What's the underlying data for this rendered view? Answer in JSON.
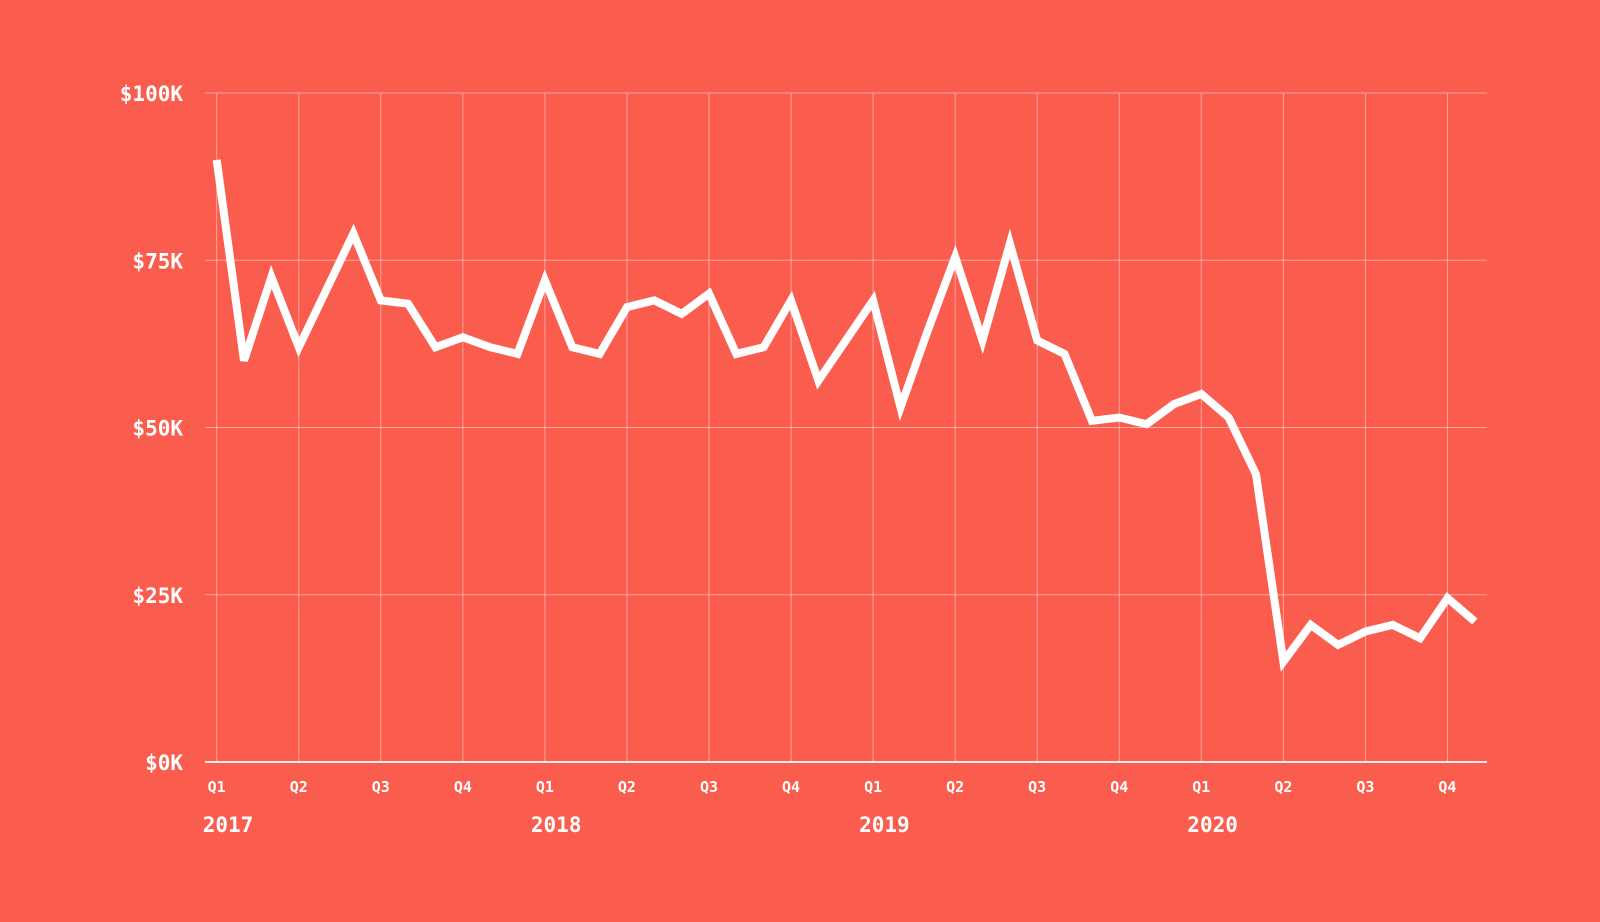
{
  "chart_data": {
    "type": "line",
    "title": "",
    "unit": "USD thousands per month",
    "legend": false,
    "grid": true,
    "x": [
      "2017-01",
      "2017-02",
      "2017-03",
      "2017-04",
      "2017-05",
      "2017-06",
      "2017-07",
      "2017-08",
      "2017-09",
      "2017-10",
      "2017-11",
      "2017-12",
      "2018-01",
      "2018-02",
      "2018-03",
      "2018-04",
      "2018-05",
      "2018-06",
      "2018-07",
      "2018-08",
      "2018-09",
      "2018-10",
      "2018-11",
      "2018-12",
      "2019-01",
      "2019-02",
      "2019-03",
      "2019-04",
      "2019-05",
      "2019-06",
      "2019-07",
      "2019-08",
      "2019-09",
      "2019-10",
      "2019-11",
      "2019-12",
      "2020-01",
      "2020-02",
      "2020-03",
      "2020-04",
      "2020-05",
      "2020-06",
      "2020-07",
      "2020-08",
      "2020-09",
      "2020-10",
      "2020-11"
    ],
    "values": [
      90,
      60,
      72.5,
      62,
      70.5,
      79,
      69,
      68.5,
      62,
      63.5,
      62,
      61,
      72,
      62,
      61,
      68,
      69,
      67,
      70,
      61,
      62,
      69,
      57,
      63,
      69,
      53,
      64.5,
      75.5,
      63,
      77.5,
      63,
      61,
      51,
      51.5,
      50.5,
      53.5,
      55,
      51.5,
      43,
      15,
      20.5,
      17.5,
      19.5,
      20.5,
      18.5,
      24.5,
      21
    ],
    "x_axis": {
      "quarter_labels": [
        "Q1",
        "Q2",
        "Q3",
        "Q4",
        "Q1",
        "Q2",
        "Q3",
        "Q4",
        "Q1",
        "Q2",
        "Q3",
        "Q4",
        "Q1",
        "Q2",
        "Q3",
        "Q4"
      ],
      "year_labels": [
        "2017",
        "2018",
        "2019",
        "2020"
      ]
    },
    "y_axis": {
      "ticks": [
        0,
        25,
        50,
        75,
        100
      ],
      "tick_labels": [
        "$0K",
        "$25K",
        "$50K",
        "$75K",
        "$100K"
      ],
      "range": [
        0,
        100
      ]
    }
  },
  "style": {
    "background": "#fa5c4d",
    "line_color": "#ffffff",
    "grid_color": "rgba(255,255,255,0.45)",
    "baseline_color": "rgba(255,255,255,0.85)",
    "label_color": "#ffffff"
  }
}
